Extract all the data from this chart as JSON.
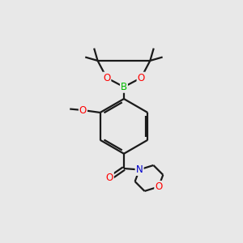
{
  "background_color": "#e8e8e8",
  "bond_color": "#1a1a1a",
  "atom_colors": {
    "O": "#ff0000",
    "N": "#0000cc",
    "B": "#00bb00",
    "C": "#1a1a1a"
  },
  "font_size": 8.5,
  "fig_size": [
    3.0,
    3.0
  ],
  "dpi": 100
}
